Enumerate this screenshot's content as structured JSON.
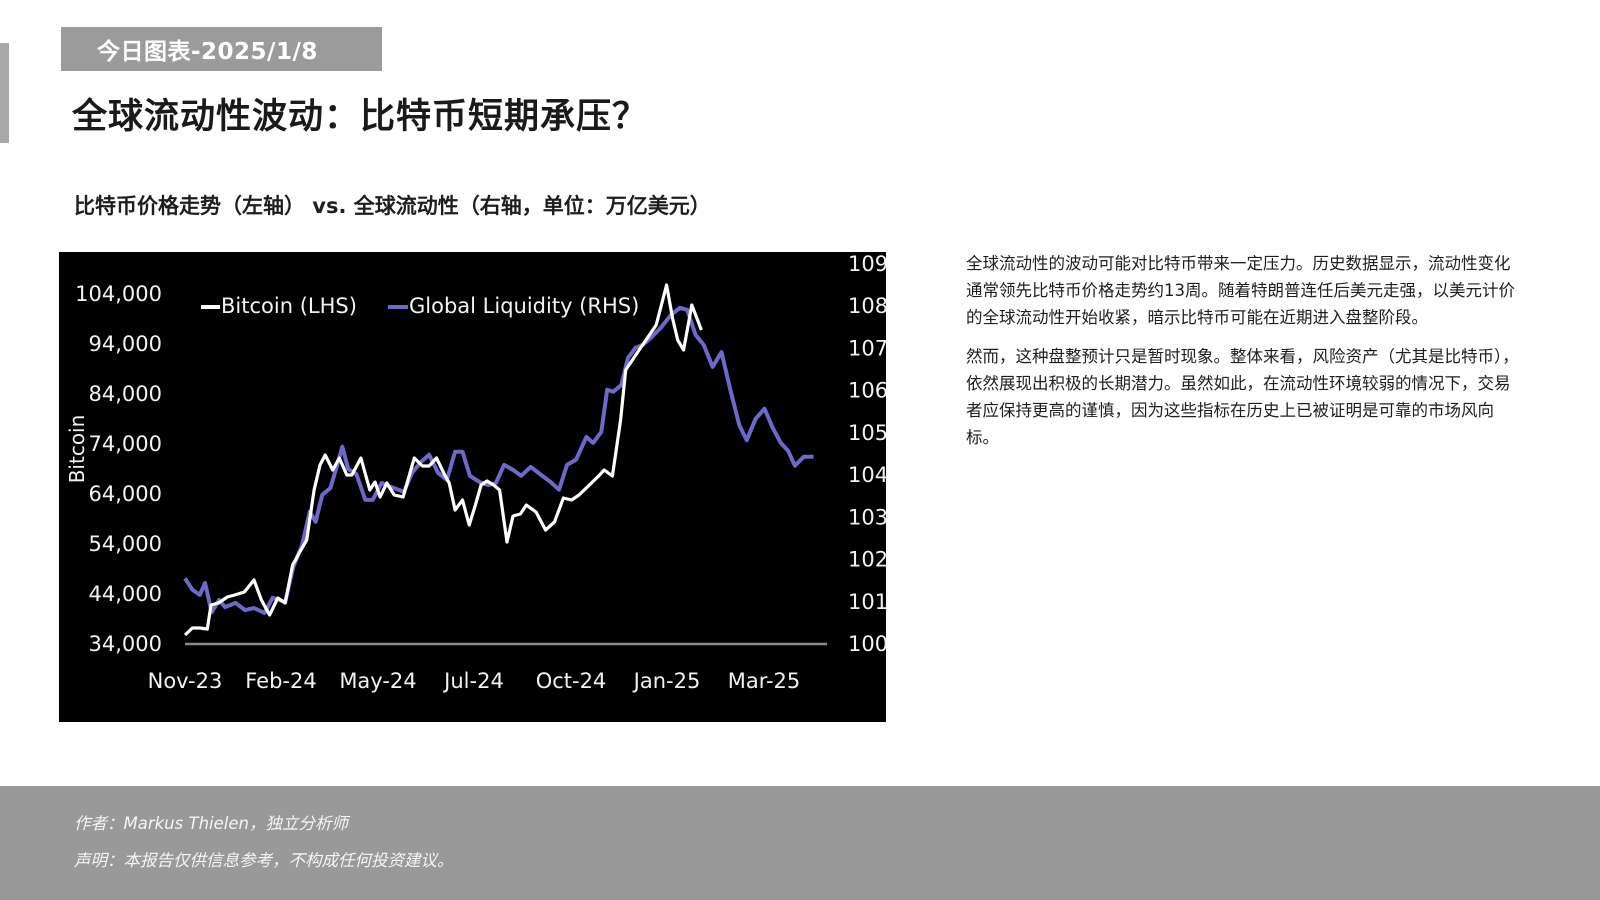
{
  "header": {
    "date_tag": "今日图表-2025/1/8",
    "title": "全球流动性波动：比特币短期承压？",
    "chart_subtitle": "比特币价格走势（左轴） vs. 全球流动性（右轴，单位：万亿美元）"
  },
  "body": {
    "paragraphs": [
      "全球流动性的波动可能对比特币带来一定压力。历史数据显示，流动性变化通常领先比特币价格走势约13周。随着特朗普连任后美元走强，以美元计价的全球流动性开始收紧，暗示比特币可能在近期进入盘整阶段。",
      "然而，这种盘整预计只是暂时现象。整体来看，风险资产（尤其是比特币），依然展现出积极的长期潜力。虽然如此，在流动性环境较弱的情况下，交易者应保持更高的谨慎，因为这些指标在历史上已被证明是可靠的市场风向标。"
    ]
  },
  "footer": {
    "author": "作者：Markus Thielen，独立分析师",
    "disclaimer": "声明：本报告仅供信息参考，不构成任何投资建议。"
  },
  "chart_data": {
    "type": "line",
    "title": "比特币价格走势（左轴） vs. 全球流动性（右轴，单位：万亿美元）",
    "background": "#000000",
    "xlabel": "",
    "ylabel": "Bitcoin",
    "ylabel_right": "",
    "x_ticks": [
      "Nov-23",
      "Feb-24",
      "May-24",
      "Jul-24",
      "Oct-24",
      "Jan-25",
      "Mar-25"
    ],
    "y_left_ticks": [
      "34,000",
      "44,000",
      "54,000",
      "64,000",
      "74,000",
      "84,000",
      "94,000",
      "104,000"
    ],
    "y_right_ticks": [
      "100",
      "101",
      "102",
      "103",
      "104",
      "105",
      "106",
      "107",
      "108",
      "109"
    ],
    "ylim_left": [
      34000,
      104000
    ],
    "ylim_right": [
      100,
      109
    ],
    "grid": false,
    "legend": {
      "position": "top",
      "entries": [
        "Bitcoin (LHS)",
        "Global Liquidity (RHS)"
      ]
    },
    "series": [
      {
        "name": "Bitcoin (LHS)",
        "axis": "left",
        "color": "#ffffff",
        "x_week_index": [
          0,
          1,
          2,
          3,
          3.5,
          4.5,
          5.7,
          6.7,
          8,
          9.3,
          10.3,
          11.4,
          12.5,
          13.5,
          14.5,
          15.4,
          16.4,
          17.4,
          18.2,
          18.9,
          19.9,
          20.8,
          21.8,
          22.5,
          23.7,
          24.9,
          25.6,
          26.3,
          27.2,
          28.2,
          29.4,
          30.9,
          32,
          32.9,
          33.9,
          35,
          35.6,
          36.4,
          37.4,
          38.3,
          39.1,
          39.9,
          40.7,
          41.6,
          42.4,
          43.4,
          44.2,
          45.2,
          46,
          47.3,
          48.6,
          49.8,
          51,
          52.1,
          53.1,
          54.5,
          55.6,
          56.5,
          57.6,
          58.7,
          59.4,
          61.2,
          63.5,
          64.9,
          65.7,
          66.4,
          67.2,
          68.3,
          69.6
        ],
        "values": [
          35600,
          37000,
          37000,
          36800,
          41600,
          42000,
          43200,
          43600,
          44200,
          46600,
          42600,
          39600,
          43000,
          42000,
          49600,
          52000,
          54600,
          64600,
          69600,
          71600,
          68600,
          71000,
          67600,
          67600,
          71000,
          64600,
          66200,
          63200,
          66000,
          63600,
          63200,
          71000,
          69400,
          69400,
          71000,
          67600,
          66000,
          60600,
          62600,
          57600,
          61400,
          65600,
          66400,
          65600,
          64600,
          54200,
          59400,
          59800,
          61600,
          60200,
          56600,
          58200,
          63000,
          62600,
          63600,
          65600,
          67200,
          68600,
          67400,
          78600,
          88600,
          92600,
          97600,
          105600,
          99000,
          94600,
          92600,
          101600,
          96600
        ]
      },
      {
        "name": "Global Liquidity (RHS)",
        "axis": "right",
        "color": "#6e68c8",
        "x_week_index": [
          0,
          1,
          2,
          2.7,
          3.6,
          4.6,
          5.4,
          6.8,
          8.1,
          9.3,
          10.7,
          11.8,
          13,
          13.5,
          14.6,
          15.8,
          16.8,
          17.6,
          18.5,
          19.6,
          20.4,
          21.2,
          22,
          23.1,
          24.3,
          25.3,
          26.5,
          27.7,
          29.5,
          30.6,
          31.8,
          32.9,
          34.1,
          35.3,
          36.4,
          37.4,
          38.4,
          39.7,
          40.9,
          41.9,
          43,
          44.2,
          45.3,
          46.6,
          48,
          49.3,
          50.4,
          51.5,
          52.7,
          54.1,
          55,
          56.1,
          56.9,
          57.7,
          58.8,
          59.7,
          60.7,
          61.7,
          62.8,
          64.1,
          65.5,
          66.7,
          67.7,
          68.8,
          69.9,
          71.1,
          72.3,
          73.5,
          74.7,
          75.7,
          76.9,
          78.1,
          79.2,
          80.3,
          81.3,
          82.2,
          83.4,
          84.7
        ],
        "values": [
          101.53,
          101.26,
          101.14,
          101.42,
          100.73,
          101.02,
          100.85,
          100.95,
          100.78,
          100.83,
          100.71,
          101.07,
          101,
          100.97,
          101.8,
          102.33,
          103.11,
          102.87,
          103.51,
          103.67,
          104.15,
          104.65,
          104.12,
          104,
          103.39,
          103.39,
          103.79,
          103.7,
          103.58,
          104.03,
          104.29,
          104.46,
          104.03,
          103.86,
          104.53,
          104.53,
          103.96,
          103.81,
          103.74,
          103.79,
          104.22,
          104.1,
          103.96,
          104.17,
          103.98,
          103.81,
          103.63,
          104.22,
          104.34,
          104.88,
          104.74,
          105,
          106,
          105.95,
          106.11,
          106.75,
          106.99,
          107.06,
          107.23,
          107.46,
          107.77,
          107.94,
          107.89,
          107.3,
          107.06,
          106.54,
          106.89,
          105.99,
          105.16,
          104.8,
          105.31,
          105.55,
          105.1,
          104.74,
          104.55,
          104.2,
          104.41,
          104.41
        ]
      }
    ]
  }
}
